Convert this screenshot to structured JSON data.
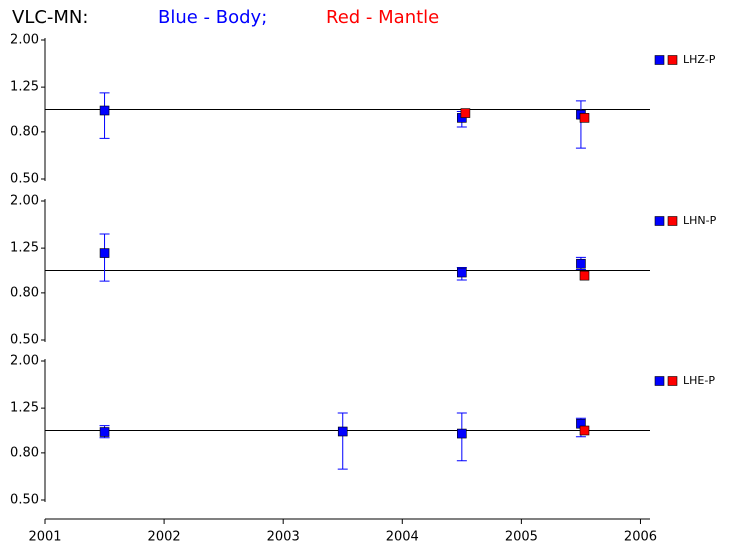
{
  "title": {
    "station": "VLC-MN:",
    "blue": "Blue - Body;",
    "red": "Red - Mantle"
  },
  "chart_data": [
    {
      "type": "scatter",
      "yscale": "log",
      "ylim": [
        0.5,
        2.0
      ],
      "xlim": [
        2001,
        2006.08
      ],
      "hline": 1.0,
      "legend": "LHZ-P",
      "yticks": [
        {
          "value": 0.5,
          "label": "0.50"
        },
        {
          "value": 0.8,
          "label": "0.80"
        },
        {
          "value": 1.25,
          "label": "1.25"
        },
        {
          "value": 2.0,
          "label": "2.00"
        }
      ],
      "series": [
        {
          "color": "#0000ff",
          "x": [
            2001.5,
            2004.5,
            2005.5
          ],
          "values": [
            0.99,
            0.92,
            0.95
          ],
          "lower": [
            0.75,
            0.84,
            0.68
          ],
          "upper": [
            1.18,
            0.98,
            1.09
          ]
        },
        {
          "color": "#ff0000",
          "x": [
            2004.53,
            2005.53
          ],
          "values": [
            0.965,
            0.92
          ]
        }
      ]
    },
    {
      "type": "scatter",
      "yscale": "log",
      "ylim": [
        0.5,
        2.0
      ],
      "xlim": [
        2001,
        2006.08
      ],
      "hline": 1.0,
      "legend": "LHN-P",
      "yticks": [
        {
          "value": 0.5,
          "label": "0.50"
        },
        {
          "value": 0.8,
          "label": "0.80"
        },
        {
          "value": 1.25,
          "label": "1.25"
        },
        {
          "value": 2.0,
          "label": "2.00"
        }
      ],
      "series": [
        {
          "color": "#0000ff",
          "x": [
            2001.5,
            2004.5,
            2005.5
          ],
          "values": [
            1.19,
            0.98,
            1.07
          ],
          "lower": [
            0.9,
            0.91,
            1.01
          ],
          "upper": [
            1.44,
            1.03,
            1.14
          ]
        },
        {
          "color": "#ff0000",
          "x": [
            2005.53
          ],
          "values": [
            0.95
          ]
        }
      ]
    },
    {
      "type": "scatter",
      "yscale": "log",
      "ylim": [
        0.5,
        2.0
      ],
      "xlim": [
        2001,
        2006.08
      ],
      "hline": 1.0,
      "legend": "LHE-P",
      "yticks": [
        {
          "value": 0.5,
          "label": "0.50"
        },
        {
          "value": 0.8,
          "label": "0.80"
        },
        {
          "value": 1.25,
          "label": "1.25"
        },
        {
          "value": 2.0,
          "label": "2.00"
        }
      ],
      "xticks": [
        2001,
        2002,
        2003,
        2004,
        2005,
        2006
      ],
      "series": [
        {
          "color": "#0000ff",
          "x": [
            2001.5,
            2003.5,
            2004.5,
            2005.5
          ],
          "values": [
            0.985,
            0.99,
            0.97,
            1.07
          ],
          "lower": [
            0.93,
            0.68,
            0.74,
            0.94
          ],
          "upper": [
            1.05,
            1.19,
            1.19,
            1.13
          ]
        },
        {
          "color": "#ff0000",
          "x": [
            2005.53
          ],
          "values": [
            1.0
          ]
        }
      ]
    }
  ]
}
